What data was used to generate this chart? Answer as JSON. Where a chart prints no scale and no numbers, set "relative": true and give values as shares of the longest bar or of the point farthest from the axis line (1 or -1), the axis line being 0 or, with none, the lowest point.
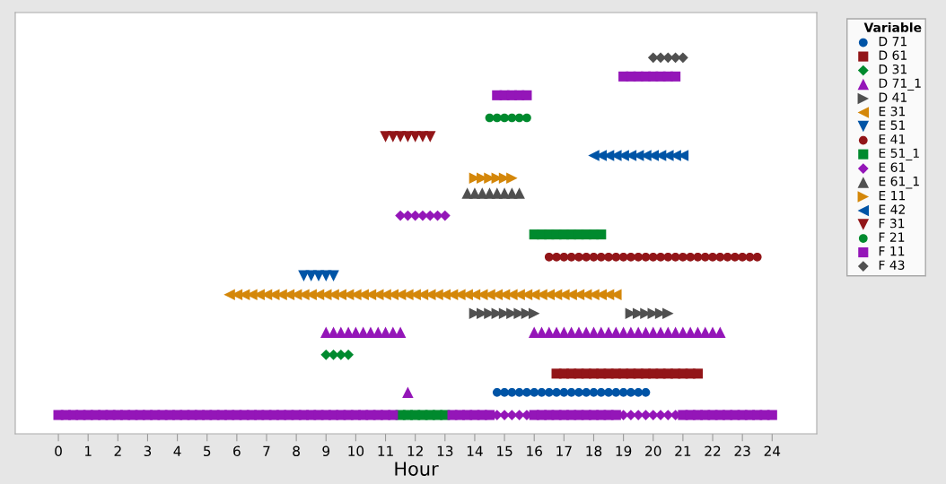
{
  "chart_data": {
    "type": "scatter",
    "relative": true,
    "xlabel": "Hour",
    "legend_title": "Variable",
    "legend": "right",
    "tick_labels": "x",
    "grid": false,
    "xlim": [
      -1.45,
      25.5
    ],
    "xticks": [
      0,
      1,
      2,
      3,
      4,
      5,
      6,
      7,
      8,
      9,
      10,
      11,
      12,
      13,
      14,
      15,
      16,
      17,
      18,
      19,
      20,
      21,
      22,
      23,
      24
    ],
    "series": [
      {
        "name": "D 71",
        "color": "#0054a6",
        "marker": "circle",
        "x": [
          14.75,
          15,
          15.25,
          15.5,
          15.75,
          16,
          16.25,
          16.5,
          16.75,
          17,
          17.25,
          17.5,
          17.75,
          18,
          18.25,
          18.5,
          18.75,
          19,
          19.25,
          19.5,
          19.75
        ],
        "values": [
          0.11,
          0.11,
          0.11,
          0.11,
          0.11,
          0.11,
          0.11,
          0.11,
          0.11,
          0.11,
          0.11,
          0.11,
          0.11,
          0.11,
          0.11,
          0.11,
          0.11,
          0.11,
          0.11,
          0.11,
          0.11
        ]
      },
      {
        "name": "D 61",
        "color": "#921518",
        "marker": "square",
        "x": [
          16.75,
          17,
          17.25,
          17.5,
          17.75,
          18,
          18.25,
          18.5,
          18.75,
          19,
          19.25,
          19.5,
          19.75,
          20,
          20.25,
          20.5,
          20.75,
          21,
          21.25,
          21.5
        ],
        "values": [
          0.16,
          0.16,
          0.16,
          0.16,
          0.16,
          0.16,
          0.16,
          0.16,
          0.16,
          0.16,
          0.16,
          0.16,
          0.16,
          0.16,
          0.16,
          0.16,
          0.16,
          0.16,
          0.16,
          0.16
        ]
      },
      {
        "name": "D 31",
        "color": "#008a2e",
        "marker": "diamond",
        "x": [
          9,
          9.25,
          9.5,
          9.75
        ],
        "values": [
          0.21,
          0.21,
          0.21,
          0.21
        ]
      },
      {
        "name": "D 71_1",
        "color": "#9416b8",
        "marker": "triangle-up",
        "x": [
          9,
          9.25,
          9.5,
          9.75,
          10,
          10.25,
          10.5,
          10.75,
          11,
          11.25,
          11.5,
          11.75,
          16,
          16.25,
          16.5,
          16.75,
          17,
          17.25,
          17.5,
          17.75,
          18,
          18.25,
          18.5,
          18.75,
          19,
          19.25,
          19.5,
          19.75,
          20,
          20.25,
          20.5,
          20.75,
          21,
          21.25,
          21.5,
          21.75,
          22,
          22.25
        ],
        "values": [
          0.27,
          0.27,
          0.27,
          0.27,
          0.27,
          0.27,
          0.27,
          0.27,
          0.27,
          0.27,
          0.27,
          0.11,
          0.27,
          0.27,
          0.27,
          0.27,
          0.27,
          0.27,
          0.27,
          0.27,
          0.27,
          0.27,
          0.27,
          0.27,
          0.27,
          0.27,
          0.27,
          0.27,
          0.27,
          0.27,
          0.27,
          0.27,
          0.27,
          0.27,
          0.27,
          0.27,
          0.27,
          0.27
        ]
      },
      {
        "name": "D 41",
        "color": "#505050",
        "marker": "triangle-right",
        "x": [
          14,
          14.25,
          14.5,
          14.75,
          15,
          15.25,
          15.5,
          15.75,
          16,
          19.25,
          19.5,
          19.75,
          20,
          20.25,
          20.5
        ],
        "values": [
          0.32,
          0.32,
          0.32,
          0.32,
          0.32,
          0.32,
          0.32,
          0.32,
          0.32,
          0.32,
          0.32,
          0.32,
          0.32,
          0.32,
          0.32
        ]
      },
      {
        "name": "E 31",
        "color": "#d4870a",
        "marker": "triangle-left",
        "x": [
          5.75,
          6,
          6.25,
          6.5,
          6.75,
          7,
          7.25,
          7.5,
          7.75,
          8,
          8.25,
          8.5,
          8.75,
          9,
          9.25,
          9.5,
          9.75,
          10,
          10.25,
          10.5,
          10.75,
          11,
          11.25,
          11.5,
          11.75,
          12,
          12.25,
          12.5,
          12.75,
          13,
          13.25,
          13.5,
          13.75,
          14,
          14.25,
          14.5,
          14.75,
          15,
          15.25,
          15.5,
          15.75,
          16,
          16.25,
          16.5,
          16.75,
          17,
          17.25,
          17.5,
          17.75,
          18,
          18.25,
          18.5,
          18.75
        ],
        "values": [
          0.37,
          0.37,
          0.37,
          0.37,
          0.37,
          0.37,
          0.37,
          0.37,
          0.37,
          0.37,
          0.37,
          0.37,
          0.37,
          0.37,
          0.37,
          0.37,
          0.37,
          0.37,
          0.37,
          0.37,
          0.37,
          0.37,
          0.37,
          0.37,
          0.37,
          0.37,
          0.37,
          0.37,
          0.37,
          0.37,
          0.37,
          0.37,
          0.37,
          0.37,
          0.37,
          0.37,
          0.37,
          0.37,
          0.37,
          0.37,
          0.37,
          0.37,
          0.37,
          0.37,
          0.37,
          0.37,
          0.37,
          0.37,
          0.37,
          0.37,
          0.37,
          0.37,
          0.37
        ]
      },
      {
        "name": "E 51",
        "color": "#0054a6",
        "marker": "triangle-down",
        "x": [
          8.25,
          8.5,
          8.75,
          9,
          9.25
        ],
        "values": [
          0.42,
          0.42,
          0.42,
          0.42,
          0.42
        ]
      },
      {
        "name": "E 41",
        "color": "#921518",
        "marker": "circle",
        "x": [
          16.5,
          16.75,
          17,
          17.25,
          17.5,
          17.75,
          18,
          18.25,
          18.5,
          18.75,
          19,
          19.25,
          19.5,
          19.75,
          20,
          20.25,
          20.5,
          20.75,
          21,
          21.25,
          21.5,
          21.75,
          22,
          22.25,
          22.5,
          22.75,
          23,
          23.25,
          23.5
        ],
        "values": [
          0.47,
          0.47,
          0.47,
          0.47,
          0.47,
          0.47,
          0.47,
          0.47,
          0.47,
          0.47,
          0.47,
          0.47,
          0.47,
          0.47,
          0.47,
          0.47,
          0.47,
          0.47,
          0.47,
          0.47,
          0.47,
          0.47,
          0.47,
          0.47,
          0.47,
          0.47,
          0.47,
          0.47,
          0.47
        ]
      },
      {
        "name": "E 51_1",
        "color": "#008a2e",
        "marker": "square",
        "x": [
          11.5,
          11.75,
          12,
          12.25,
          12.5,
          12.75,
          13,
          16,
          16.25,
          16.5,
          16.75,
          17,
          17.25,
          17.5,
          17.75,
          18,
          18.25
        ],
        "values": [
          0.05,
          0.05,
          0.05,
          0.05,
          0.05,
          0.05,
          0.05,
          0.53,
          0.53,
          0.53,
          0.53,
          0.53,
          0.53,
          0.53,
          0.53,
          0.53,
          0.53
        ]
      },
      {
        "name": "E 61",
        "color": "#9416b8",
        "marker": "diamond",
        "x": [
          11.5,
          11.75,
          12,
          12.25,
          12.5,
          12.75,
          13,
          14.75,
          15,
          15.25,
          15.5,
          15.75,
          19,
          19.25,
          19.5,
          19.75,
          20,
          20.25,
          20.5,
          20.75
        ],
        "values": [
          0.58,
          0.58,
          0.58,
          0.58,
          0.58,
          0.58,
          0.58,
          0.05,
          0.05,
          0.05,
          0.05,
          0.05,
          0.05,
          0.05,
          0.05,
          0.05,
          0.05,
          0.05,
          0.05,
          0.05
        ]
      },
      {
        "name": "E 61_1",
        "color": "#505050",
        "marker": "triangle-up",
        "x": [
          13.75,
          14,
          14.25,
          14.5,
          14.75,
          15,
          15.25,
          15.5
        ],
        "values": [
          0.64,
          0.64,
          0.64,
          0.64,
          0.64,
          0.64,
          0.64,
          0.64
        ]
      },
      {
        "name": "E 11",
        "color": "#d4870a",
        "marker": "triangle-right",
        "x": [
          14,
          14.25,
          14.5,
          14.75,
          15,
          15.25
        ],
        "values": [
          0.68,
          0.68,
          0.68,
          0.68,
          0.68,
          0.68
        ]
      },
      {
        "name": "E 42",
        "color": "#0054a6",
        "marker": "triangle-left",
        "x": [
          18,
          18.25,
          18.5,
          18.75,
          19,
          19.25,
          19.5,
          19.75,
          20,
          20.25,
          20.5,
          20.75,
          21
        ],
        "values": [
          0.74,
          0.74,
          0.74,
          0.74,
          0.74,
          0.74,
          0.74,
          0.74,
          0.74,
          0.74,
          0.74,
          0.74,
          0.74
        ]
      },
      {
        "name": "F 31",
        "color": "#921518",
        "marker": "triangle-down",
        "x": [
          11,
          11.25,
          11.5,
          11.75,
          12,
          12.25,
          12.5
        ],
        "values": [
          0.79,
          0.79,
          0.79,
          0.79,
          0.79,
          0.79,
          0.79
        ]
      },
      {
        "name": "F 21",
        "color": "#008a2e",
        "marker": "circle",
        "x": [
          14.5,
          14.75,
          15,
          15.25,
          15.5,
          15.75
        ],
        "values": [
          0.84,
          0.84,
          0.84,
          0.84,
          0.84,
          0.84
        ]
      },
      {
        "name": "F 11",
        "color": "#9416b8",
        "marker": "square",
        "x": [
          0,
          0.25,
          0.5,
          0.75,
          1,
          1.25,
          1.5,
          1.75,
          2,
          2.25,
          2.5,
          2.75,
          3,
          3.25,
          3.5,
          3.75,
          4,
          4.25,
          4.5,
          4.75,
          5,
          5.25,
          5.5,
          5.75,
          6,
          6.25,
          6.5,
          6.75,
          7,
          7.25,
          7.5,
          7.75,
          8,
          8.25,
          8.5,
          8.75,
          9,
          9.25,
          9.5,
          9.75,
          10,
          10.25,
          10.5,
          10.75,
          11,
          11.25,
          13.25,
          13.5,
          13.75,
          14,
          14.25,
          14.5,
          14.75,
          15,
          15.25,
          15.5,
          15.75,
          16,
          16.25,
          16.5,
          16.75,
          17,
          17.25,
          17.5,
          17.75,
          18,
          18.25,
          18.5,
          18.75,
          19,
          19.25,
          19.5,
          19.75,
          20,
          20.25,
          20.5,
          20.75,
          21,
          21.25,
          21.5,
          21.75,
          22,
          22.25,
          22.5,
          22.75,
          23,
          23.25,
          23.5,
          23.75,
          24
        ],
        "values": [
          0.05,
          0.05,
          0.05,
          0.05,
          0.05,
          0.05,
          0.05,
          0.05,
          0.05,
          0.05,
          0.05,
          0.05,
          0.05,
          0.05,
          0.05,
          0.05,
          0.05,
          0.05,
          0.05,
          0.05,
          0.05,
          0.05,
          0.05,
          0.05,
          0.05,
          0.05,
          0.05,
          0.05,
          0.05,
          0.05,
          0.05,
          0.05,
          0.05,
          0.05,
          0.05,
          0.05,
          0.05,
          0.05,
          0.05,
          0.05,
          0.05,
          0.05,
          0.05,
          0.05,
          0.05,
          0.05,
          0.05,
          0.05,
          0.05,
          0.05,
          0.05,
          0.05,
          0.9,
          0.9,
          0.9,
          0.9,
          0.9,
          0.05,
          0.05,
          0.05,
          0.05,
          0.05,
          0.05,
          0.05,
          0.05,
          0.05,
          0.05,
          0.05,
          0.05,
          0.95,
          0.95,
          0.95,
          0.95,
          0.95,
          0.95,
          0.95,
          0.95,
          0.05,
          0.05,
          0.05,
          0.05,
          0.05,
          0.05,
          0.05,
          0.05,
          0.05,
          0.05,
          0.05,
          0.05,
          0.05
        ]
      },
      {
        "name": "F 43",
        "color": "#505050",
        "marker": "diamond",
        "x": [
          20,
          20.25,
          20.5,
          20.75,
          21
        ],
        "values": [
          1,
          1,
          1,
          1,
          1
        ]
      }
    ]
  }
}
